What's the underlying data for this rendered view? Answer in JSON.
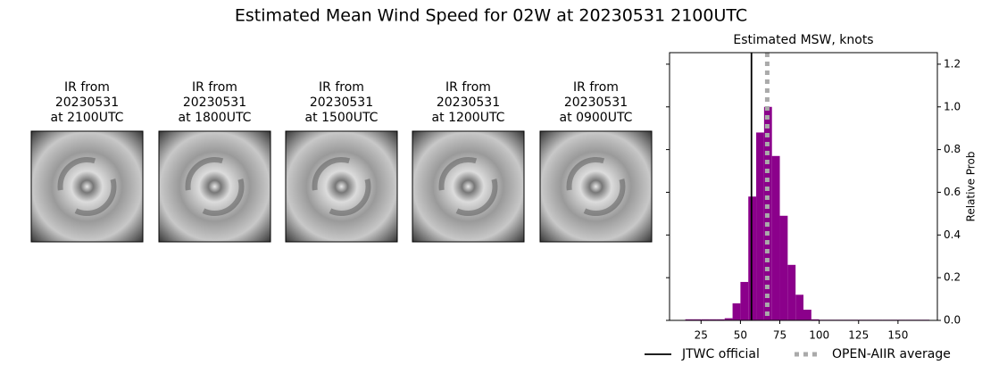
{
  "title": "Estimated Mean Wind Speed for 02W at 20230531 2100UTC",
  "panels": [
    {
      "lines": [
        "IR from",
        "20230531",
        "at 2100UTC"
      ]
    },
    {
      "lines": [
        "IR from",
        "20230531",
        "at 1800UTC"
      ]
    },
    {
      "lines": [
        "IR from",
        "20230531",
        "at 1500UTC"
      ]
    },
    {
      "lines": [
        "IR from",
        "20230531",
        "at 1200UTC"
      ]
    },
    {
      "lines": [
        "IR from",
        "20230531",
        "at 0900UTC"
      ]
    }
  ],
  "chart_data": {
    "type": "histogram",
    "title": "Estimated MSW, knots",
    "y_label": "Relative Prob",
    "color": "#8b008b",
    "bins": [
      15,
      20,
      25,
      30,
      35,
      40,
      45,
      50,
      55,
      60,
      65,
      70,
      75,
      80,
      85,
      90,
      95,
      100,
      105,
      110,
      115,
      120,
      125,
      130,
      135,
      140,
      145,
      150,
      155,
      160,
      165,
      170
    ],
    "counts": [
      0.005,
      0.005,
      0.005,
      0.005,
      0.005,
      0.01,
      0.08,
      0.18,
      0.58,
      0.88,
      1.0,
      0.77,
      0.49,
      0.26,
      0.12,
      0.05,
      0.005,
      0.003,
      0.003,
      0.003,
      0.003,
      0.003,
      0.003,
      0.003,
      0.003,
      0.003,
      0.003,
      0.003,
      0.003,
      0.003,
      0.003
    ],
    "xlim": [
      5,
      175
    ],
    "ylim": [
      0,
      1.254
    ],
    "xticks": [
      25,
      50,
      75,
      100,
      125,
      150
    ],
    "yticks": [
      {
        "value": 0,
        "label": "0.0"
      },
      {
        "value": 0.2,
        "label": "0.2"
      },
      {
        "value": 0.4,
        "label": "0.4"
      },
      {
        "value": 0.6,
        "label": "0.6"
      },
      {
        "value": 0.8,
        "label": "0.8"
      },
      {
        "value": 1.0,
        "label": "1.0"
      },
      {
        "value": 1.2,
        "label": "1.2"
      }
    ],
    "lines": [
      {
        "name": "JTWC official",
        "x": 57,
        "color": "#000000",
        "style": "solid"
      },
      {
        "name": "OPEN-AIIR average",
        "x": 67,
        "color": "#aaaaaa",
        "style": "dotted"
      }
    ]
  }
}
